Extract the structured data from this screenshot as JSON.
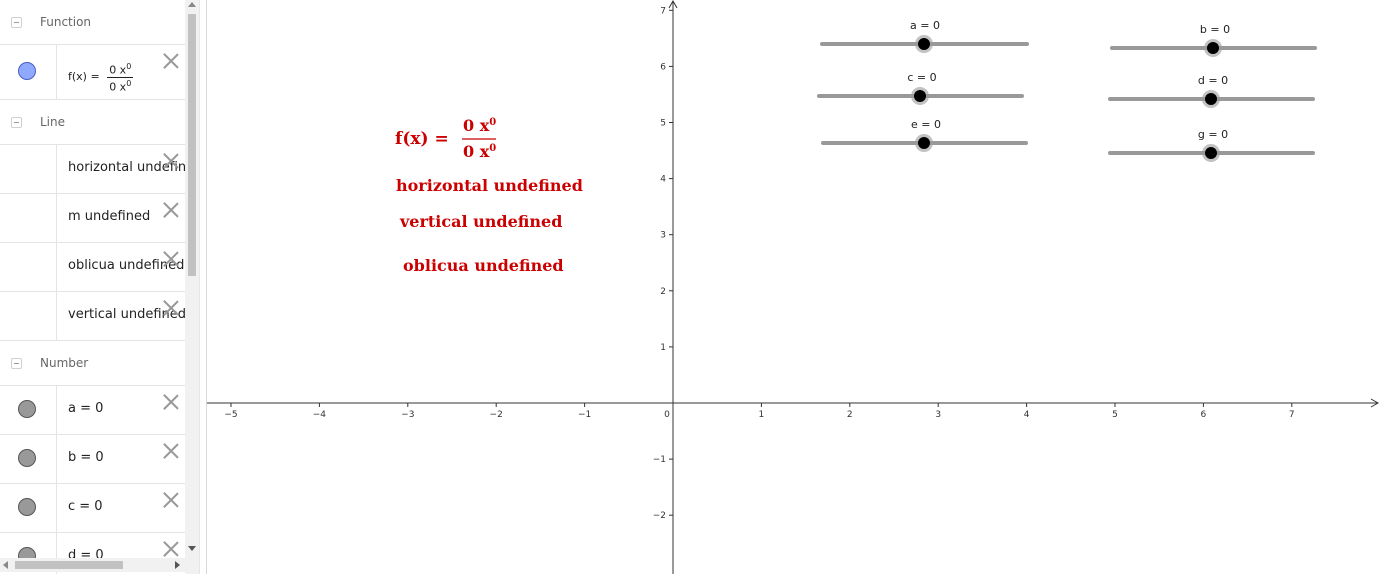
{
  "algebra": {
    "categories": {
      "function": "Function",
      "line": "Line",
      "number": "Number"
    },
    "function_item": {
      "lhs": "f(x) =",
      "num": "0 x",
      "den": "0 x",
      "exp": "0"
    },
    "line_items": [
      "horizontal undefined",
      "m undefined",
      "oblicua undefined",
      "vertical undefined"
    ],
    "number_items": [
      "a = 0",
      "b = 0",
      "c = 0",
      "d = 0"
    ]
  },
  "graph": {
    "x_ticks": [
      "−5",
      "−4",
      "−3",
      "−2",
      "−1",
      "0",
      "1",
      "2",
      "3",
      "4",
      "5",
      "6",
      "7"
    ],
    "y_ticks": [
      "7",
      "6",
      "5",
      "4",
      "3",
      "2",
      "1",
      "−1",
      "−2"
    ],
    "text_objects": {
      "fx_lhs": "f(x) =",
      "fx_num": "0 x",
      "fx_den": "0 x",
      "fx_exp": "0",
      "horizontal": "horizontal undefined",
      "vertical": "vertical undefined",
      "oblicua": "oblicua undefined"
    },
    "sliders": [
      {
        "label": "a = 0"
      },
      {
        "label": "b = 0"
      },
      {
        "label": "c = 0"
      },
      {
        "label": "d = 0"
      },
      {
        "label": "e = 0"
      },
      {
        "label": "g = 0"
      }
    ]
  },
  "colors": {
    "accent_red": "#cc0000",
    "function_marble": "#8fa9ff",
    "slider_track": "#999999"
  }
}
